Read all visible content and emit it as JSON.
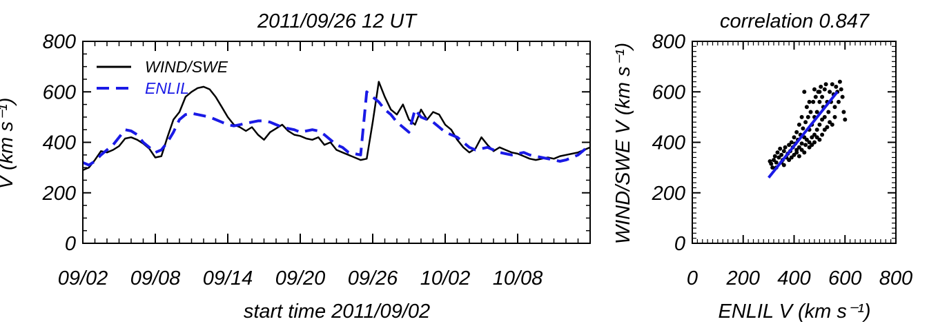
{
  "chart_data": [
    {
      "type": "line",
      "title": "2011/09/26 12 UT",
      "xlabel": "start time 2011/09/02",
      "ylabel": "V (km s⁻¹)",
      "x_unit": "date (2011)",
      "xlim": [
        "2011-09-02",
        "2011-10-14"
      ],
      "ylim": [
        0,
        800
      ],
      "x_ticks": [
        "09/02",
        "09/08",
        "09/14",
        "09/20",
        "09/26",
        "10/02",
        "10/08"
      ],
      "y_ticks": [
        "0",
        "200",
        "400",
        "600",
        "800"
      ],
      "grid": false,
      "legend": "top-left",
      "series": [
        {
          "name": "WIND/SWE",
          "color": "#000000",
          "dash": "solid",
          "x": [
            "2011-09-02",
            "2011-09-02T12:00",
            "2011-09-03",
            "2011-09-03T12:00",
            "2011-09-04",
            "2011-09-04T12:00",
            "2011-09-05",
            "2011-09-05T12:00",
            "2011-09-06",
            "2011-09-06T12:00",
            "2011-09-07",
            "2011-09-07T12:00",
            "2011-09-08",
            "2011-09-08T12:00",
            "2011-09-09",
            "2011-09-09T12:00",
            "2011-09-10",
            "2011-09-10T12:00",
            "2011-09-11",
            "2011-09-11T12:00",
            "2011-09-12",
            "2011-09-12T12:00",
            "2011-09-13",
            "2011-09-13T12:00",
            "2011-09-14",
            "2011-09-14T12:00",
            "2011-09-15",
            "2011-09-15T12:00",
            "2011-09-16",
            "2011-09-16T12:00",
            "2011-09-17",
            "2011-09-17T12:00",
            "2011-09-18",
            "2011-09-18T12:00",
            "2011-09-19",
            "2011-09-19T12:00",
            "2011-09-20",
            "2011-09-20T12:00",
            "2011-09-21",
            "2011-09-21T12:00",
            "2011-09-22",
            "2011-09-22T12:00",
            "2011-09-23",
            "2011-09-23T12:00",
            "2011-09-24",
            "2011-09-24T12:00",
            "2011-09-25",
            "2011-09-25T12:00",
            "2011-09-26",
            "2011-09-26T12:00",
            "2011-09-27",
            "2011-09-27T12:00",
            "2011-09-28",
            "2011-09-28T12:00",
            "2011-09-29",
            "2011-09-29T12:00",
            "2011-09-30",
            "2011-09-30T12:00",
            "2011-10-01",
            "2011-10-01T12:00",
            "2011-10-02",
            "2011-10-02T12:00",
            "2011-10-03",
            "2011-10-03T12:00",
            "2011-10-04",
            "2011-10-04T12:00",
            "2011-10-05",
            "2011-10-05T12:00",
            "2011-10-06",
            "2011-10-06T12:00",
            "2011-10-07",
            "2011-10-07T12:00",
            "2011-10-08",
            "2011-10-08T12:00",
            "2011-10-09",
            "2011-10-09T12:00",
            "2011-10-10",
            "2011-10-10T12:00",
            "2011-10-11",
            "2011-10-11T12:00",
            "2011-10-12",
            "2011-10-12T12:00",
            "2011-10-13",
            "2011-10-13T12:00",
            "2011-10-14"
          ],
          "y": [
            290,
            300,
            330,
            365,
            360,
            370,
            385,
            415,
            420,
            410,
            395,
            375,
            340,
            345,
            420,
            490,
            520,
            580,
            600,
            615,
            620,
            610,
            580,
            540,
            500,
            470,
            460,
            445,
            460,
            430,
            410,
            440,
            455,
            470,
            445,
            430,
            425,
            415,
            410,
            420,
            390,
            400,
            370,
            360,
            350,
            340,
            330,
            335,
            480,
            640,
            580,
            530,
            510,
            550,
            490,
            470,
            530,
            490,
            520,
            510,
            470,
            450,
            410,
            380,
            360,
            375,
            420,
            390,
            365,
            380,
            370,
            360,
            355,
            345,
            335,
            330,
            335,
            340,
            335,
            345,
            350,
            355,
            360,
            370,
            380
          ]
        },
        {
          "name": "ENLIL",
          "color": "#1a1ae6",
          "dash": "dashed",
          "x": [
            "2011-09-02",
            "2011-09-02T12:00",
            "2011-09-03",
            "2011-09-03T12:00",
            "2011-09-04",
            "2011-09-04T12:00",
            "2011-09-05",
            "2011-09-05T12:00",
            "2011-09-06",
            "2011-09-06T12:00",
            "2011-09-07",
            "2011-09-07T12:00",
            "2011-09-08",
            "2011-09-08T12:00",
            "2011-09-09",
            "2011-09-09T12:00",
            "2011-09-10",
            "2011-09-10T12:00",
            "2011-09-11",
            "2011-09-11T12:00",
            "2011-09-12",
            "2011-09-12T12:00",
            "2011-09-13",
            "2011-09-13T12:00",
            "2011-09-14",
            "2011-09-14T12:00",
            "2011-09-15",
            "2011-09-15T12:00",
            "2011-09-16",
            "2011-09-16T12:00",
            "2011-09-17",
            "2011-09-17T12:00",
            "2011-09-18",
            "2011-09-18T12:00",
            "2011-09-19",
            "2011-09-19T12:00",
            "2011-09-20",
            "2011-09-20T12:00",
            "2011-09-21",
            "2011-09-21T12:00",
            "2011-09-22",
            "2011-09-22T12:00",
            "2011-09-23",
            "2011-09-23T12:00",
            "2011-09-24",
            "2011-09-24T12:00",
            "2011-09-25",
            "2011-09-25T12:00",
            "2011-09-26",
            "2011-09-26T12:00",
            "2011-09-27",
            "2011-09-27T12:00",
            "2011-09-28",
            "2011-09-28T12:00",
            "2011-09-29",
            "2011-09-29T12:00",
            "2011-09-30",
            "2011-09-30T12:00",
            "2011-10-01",
            "2011-10-01T12:00",
            "2011-10-02",
            "2011-10-02T12:00",
            "2011-10-03",
            "2011-10-03T12:00",
            "2011-10-04",
            "2011-10-04T12:00",
            "2011-10-05",
            "2011-10-05T12:00",
            "2011-10-06",
            "2011-10-06T12:00",
            "2011-10-07",
            "2011-10-07T12:00",
            "2011-10-08",
            "2011-10-08T12:00",
            "2011-10-09",
            "2011-10-09T12:00",
            "2011-10-10",
            "2011-10-10T12:00",
            "2011-10-11",
            "2011-10-11T12:00",
            "2011-10-12",
            "2011-10-12T12:00",
            "2011-10-13",
            "2011-10-13T12:00",
            "2011-10-14"
          ],
          "y": [
            320,
            310,
            325,
            350,
            370,
            390,
            420,
            450,
            445,
            430,
            400,
            380,
            360,
            370,
            400,
            440,
            490,
            510,
            515,
            510,
            505,
            500,
            490,
            480,
            470,
            465,
            470,
            475,
            480,
            485,
            485,
            480,
            470,
            460,
            455,
            450,
            440,
            445,
            450,
            445,
            430,
            410,
            390,
            380,
            360,
            355,
            350,
            600,
            580,
            560,
            530,
            510,
            480,
            460,
            440,
            530,
            500,
            490,
            480,
            460,
            440,
            430,
            420,
            400,
            380,
            370,
            375,
            380,
            370,
            360,
            355,
            350,
            355,
            360,
            350,
            345,
            340,
            335,
            330,
            325,
            330,
            340,
            350,
            370,
            390
          ]
        }
      ]
    },
    {
      "type": "scatter",
      "title": "correlation 0.847",
      "xlabel": "ENLIL V (km s⁻¹)",
      "ylabel": "WIND/SWE V (km s⁻¹)",
      "xlim": [
        0,
        800
      ],
      "ylim": [
        0,
        800
      ],
      "x_ticks": [
        "0",
        "200",
        "400",
        "600",
        "800"
      ],
      "y_ticks": [
        "0",
        "200",
        "400",
        "600",
        "800"
      ],
      "grid": false,
      "point_color": "#000000",
      "fit_color": "#1a1ae6",
      "fit_line": {
        "x": [
          300,
          570
        ],
        "y": [
          260,
          600
        ]
      },
      "points": [
        [
          305,
          325
        ],
        [
          310,
          315
        ],
        [
          315,
          300
        ],
        [
          320,
          330
        ],
        [
          325,
          345
        ],
        [
          330,
          320
        ],
        [
          335,
          360
        ],
        [
          340,
          340
        ],
        [
          345,
          375
        ],
        [
          350,
          350
        ],
        [
          355,
          330
        ],
        [
          360,
          365
        ],
        [
          365,
          380
        ],
        [
          370,
          340
        ],
        [
          375,
          355
        ],
        [
          380,
          390
        ],
        [
          385,
          365
        ],
        [
          390,
          400
        ],
        [
          395,
          380
        ],
        [
          400,
          420
        ],
        [
          400,
          350
        ],
        [
          405,
          395
        ],
        [
          410,
          440
        ],
        [
          410,
          370
        ],
        [
          415,
          410
        ],
        [
          420,
          470
        ],
        [
          420,
          380
        ],
        [
          425,
          430
        ],
        [
          430,
          500
        ],
        [
          430,
          395
        ],
        [
          435,
          455
        ],
        [
          440,
          420
        ],
        [
          445,
          480
        ],
        [
          445,
          390
        ],
        [
          450,
          540
        ],
        [
          450,
          410
        ],
        [
          455,
          500
        ],
        [
          460,
          450
        ],
        [
          460,
          400
        ],
        [
          465,
          520
        ],
        [
          470,
          470
        ],
        [
          470,
          420
        ],
        [
          475,
          560
        ],
        [
          480,
          500
        ],
        [
          480,
          430
        ],
        [
          485,
          580
        ],
        [
          490,
          520
        ],
        [
          490,
          450
        ],
        [
          495,
          600
        ],
        [
          500,
          560
        ],
        [
          500,
          470
        ],
        [
          505,
          620
        ],
        [
          510,
          580
        ],
        [
          510,
          490
        ],
        [
          515,
          540
        ],
        [
          520,
          610
        ],
        [
          520,
          500
        ],
        [
          525,
          630
        ],
        [
          530,
          560
        ],
        [
          535,
          520
        ],
        [
          540,
          600
        ],
        [
          545,
          560
        ],
        [
          550,
          630
        ],
        [
          555,
          590
        ],
        [
          560,
          540
        ],
        [
          565,
          620
        ],
        [
          570,
          600
        ],
        [
          575,
          560
        ],
        [
          580,
          640
        ],
        [
          585,
          610
        ],
        [
          590,
          580
        ],
        [
          595,
          520
        ],
        [
          600,
          490
        ],
        [
          360,
          310
        ],
        [
          380,
          330
        ],
        [
          420,
          345
        ],
        [
          440,
          360
        ],
        [
          470,
          390
        ],
        [
          500,
          410
        ],
        [
          520,
          450
        ],
        [
          540,
          480
        ],
        [
          560,
          500
        ],
        [
          330,
          300
        ],
        [
          350,
          320
        ],
        [
          390,
          340
        ],
        [
          410,
          360
        ],
        [
          430,
          370
        ],
        [
          460,
          380
        ],
        [
          480,
          400
        ],
        [
          490,
          420
        ],
        [
          510,
          430
        ],
        [
          530,
          460
        ],
        [
          550,
          470
        ],
        [
          500,
          600
        ],
        [
          460,
          560
        ],
        [
          440,
          600
        ],
        [
          480,
          610
        ]
      ]
    }
  ]
}
